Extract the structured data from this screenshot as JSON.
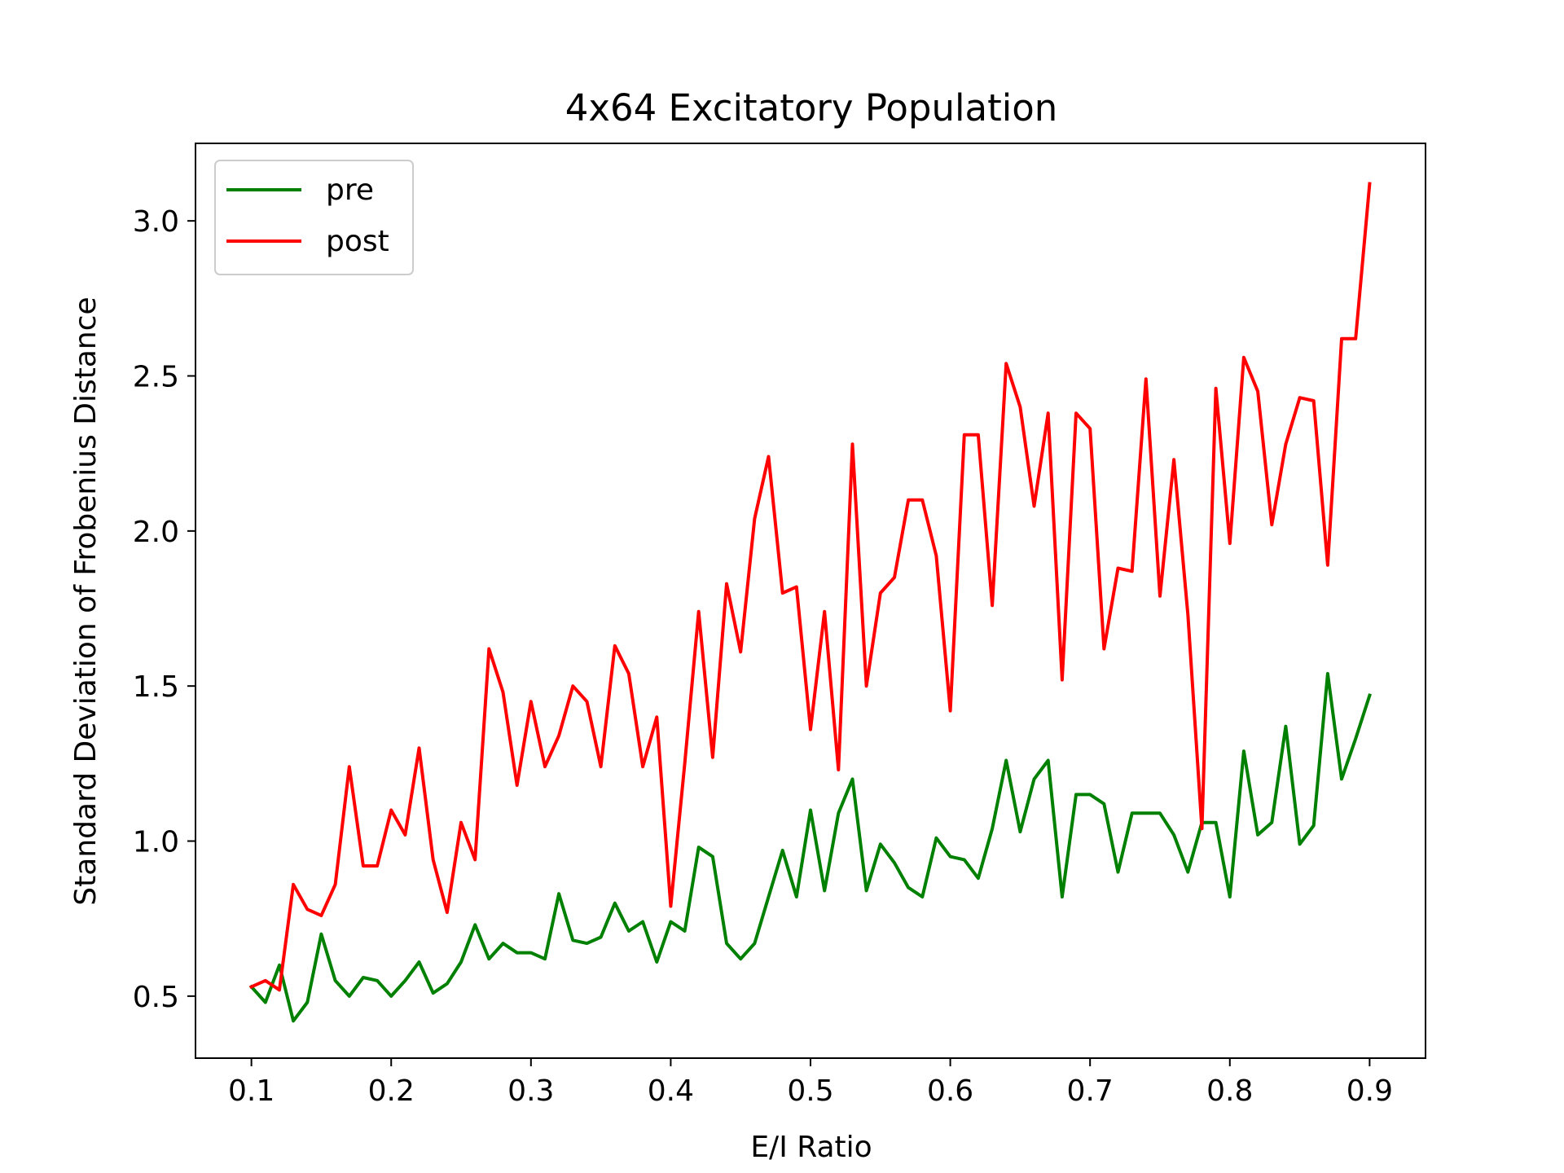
{
  "chart_data": {
    "type": "line",
    "title": "4x64 Excitatory Population",
    "xlabel": "E/I Ratio",
    "ylabel": "Standard Deviation of Frobenius Distance",
    "xlim": [
      0.06,
      0.94
    ],
    "ylim": [
      0.3,
      3.25
    ],
    "xticks": [
      0.1,
      0.2,
      0.3,
      0.4,
      0.5,
      0.6,
      0.7,
      0.8,
      0.9
    ],
    "xtick_labels": [
      "0.1",
      "0.2",
      "0.3",
      "0.4",
      "0.5",
      "0.6",
      "0.7",
      "0.8",
      "0.9"
    ],
    "yticks": [
      0.5,
      1.0,
      1.5,
      2.0,
      2.5,
      3.0
    ],
    "ytick_labels": [
      "0.5",
      "1.0",
      "1.5",
      "2.0",
      "2.5",
      "3.0"
    ],
    "grid": false,
    "legend_position": "top-left",
    "x": [
      0.1,
      0.11,
      0.12,
      0.13,
      0.14,
      0.15,
      0.16,
      0.17,
      0.18,
      0.19,
      0.2,
      0.21,
      0.22,
      0.23,
      0.24,
      0.25,
      0.26,
      0.27,
      0.28,
      0.29,
      0.3,
      0.31,
      0.32,
      0.33,
      0.34,
      0.35,
      0.36,
      0.37,
      0.38,
      0.39,
      0.4,
      0.41,
      0.42,
      0.43,
      0.44,
      0.45,
      0.46,
      0.47,
      0.48,
      0.49,
      0.5,
      0.51,
      0.52,
      0.53,
      0.54,
      0.55,
      0.56,
      0.57,
      0.58,
      0.59,
      0.6,
      0.61,
      0.62,
      0.63,
      0.64,
      0.65,
      0.66,
      0.67,
      0.68,
      0.69,
      0.7,
      0.71,
      0.72,
      0.73,
      0.74,
      0.75,
      0.76,
      0.77,
      0.78,
      0.79,
      0.8,
      0.81,
      0.82,
      0.83,
      0.84,
      0.85,
      0.86,
      0.87,
      0.88,
      0.89,
      0.9
    ],
    "series": [
      {
        "name": "pre",
        "color": "#008000",
        "values": [
          0.53,
          0.48,
          0.6,
          0.42,
          0.48,
          0.7,
          0.55,
          0.5,
          0.56,
          0.55,
          0.5,
          0.55,
          0.61,
          0.51,
          0.54,
          0.61,
          0.73,
          0.62,
          0.67,
          0.64,
          0.64,
          0.62,
          0.83,
          0.68,
          0.67,
          0.69,
          0.8,
          0.71,
          0.74,
          0.61,
          0.74,
          0.71,
          0.98,
          0.95,
          0.67,
          0.62,
          0.67,
          0.82,
          0.97,
          0.82,
          1.1,
          0.84,
          1.09,
          1.2,
          0.84,
          0.99,
          0.93,
          0.85,
          0.82,
          1.01,
          0.95,
          0.94,
          0.88,
          1.04,
          1.26,
          1.03,
          1.2,
          1.26,
          0.82,
          1.15,
          1.15,
          1.12,
          0.9,
          1.09,
          1.09,
          1.09,
          1.02,
          0.9,
          1.06,
          1.06,
          0.82,
          1.29,
          1.02,
          1.06,
          1.37,
          0.99,
          1.05,
          1.54,
          1.2,
          1.33,
          1.47
        ]
      },
      {
        "name": "post",
        "color": "#ff0000",
        "values": [
          0.53,
          0.55,
          0.52,
          0.86,
          0.78,
          0.76,
          0.86,
          1.24,
          0.92,
          0.92,
          1.1,
          1.02,
          1.3,
          0.94,
          0.77,
          1.06,
          0.94,
          1.62,
          1.48,
          1.18,
          1.45,
          1.24,
          1.34,
          1.5,
          1.45,
          1.24,
          1.63,
          1.54,
          1.24,
          1.4,
          0.79,
          1.25,
          1.74,
          1.27,
          1.83,
          1.61,
          2.04,
          2.24,
          1.8,
          1.82,
          1.36,
          1.74,
          1.23,
          2.28,
          1.5,
          1.8,
          1.85,
          2.1,
          2.1,
          1.92,
          1.42,
          2.31,
          2.31,
          1.76,
          2.54,
          2.4,
          2.08,
          2.38,
          1.52,
          2.38,
          2.33,
          1.62,
          1.88,
          1.87,
          2.49,
          1.79,
          2.23,
          1.73,
          1.04,
          2.46,
          1.96,
          2.56,
          2.45,
          2.02,
          2.28,
          2.43,
          2.42,
          1.89,
          2.62,
          2.62,
          3.12
        ]
      }
    ]
  }
}
